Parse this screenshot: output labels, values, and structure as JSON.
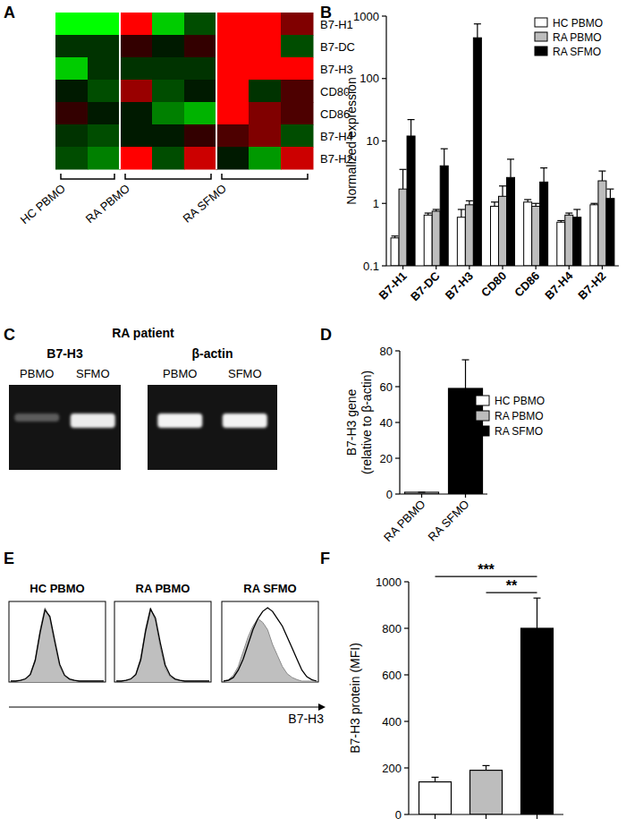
{
  "chart_data": [
    {
      "type": "heatmap",
      "panel_label": "A",
      "rows": [
        "B7-H1",
        "B7-DC",
        "B7-H3",
        "CD80",
        "CD86",
        "B7-H4",
        "B7-H2"
      ],
      "column_groups": [
        {
          "name": "HC PBMO",
          "columns": 2
        },
        {
          "name": "RA PBMO",
          "columns": 3
        },
        {
          "name": "RA SFMO",
          "columns": 3
        }
      ],
      "cells": [
        [
          -1,
          -1,
          1,
          -0.8,
          -0.3,
          1,
          1,
          0.5
        ],
        [
          -0.2,
          -0.2,
          0.2,
          -0.1,
          0.2,
          1,
          1,
          -0.3
        ],
        [
          -0.8,
          -0.2,
          -0.2,
          -0.2,
          -0.2,
          1,
          1,
          1
        ],
        [
          -0.1,
          -0.3,
          0.6,
          -0.3,
          -0.1,
          1,
          -0.2,
          0.3
        ],
        [
          0.2,
          -0.1,
          -0.1,
          -0.5,
          -0.7,
          1,
          0.5,
          0.3
        ],
        [
          -0.2,
          -0.3,
          -0.1,
          -0.1,
          0.2,
          0.3,
          0.5,
          -0.3
        ],
        [
          -0.3,
          -0.5,
          1,
          -0.3,
          0.8,
          -0.1,
          -0.6,
          0.8
        ]
      ],
      "color_range": [
        -1,
        1
      ]
    },
    {
      "type": "bar",
      "panel_label": "B",
      "categories": [
        "B7-H1",
        "B7-DC",
        "B7-H3",
        "CD80",
        "CD86",
        "B7-H4",
        "B7-H2"
      ],
      "series": [
        {
          "name": "HC PBMO",
          "color": "#ffffff",
          "values": [
            0.28,
            0.65,
            0.6,
            0.9,
            1.05,
            0.5,
            0.95
          ],
          "errors": [
            0.02,
            0.05,
            0.2,
            0.15,
            0.1,
            0.03,
            0.05
          ]
        },
        {
          "name": "RA PBMO",
          "color": "#bdbdbd",
          "values": [
            1.7,
            0.75,
            0.95,
            1.3,
            0.9,
            0.65,
            2.3
          ],
          "errors": [
            1.8,
            0.05,
            0.15,
            0.6,
            0.1,
            0.05,
            1.0
          ]
        },
        {
          "name": "RA SFMO",
          "color": "#000000",
          "values": [
            12,
            4,
            450,
            2.6,
            2.2,
            0.6,
            1.2
          ],
          "errors": [
            10,
            3.5,
            300,
            2.5,
            1.5,
            0.2,
            0.5
          ]
        }
      ],
      "ylim": [
        0.1,
        1000
      ],
      "yticks": [
        0.1,
        1,
        10,
        100,
        1000
      ],
      "log": "y",
      "y_label": "Normalized expression",
      "legend": "top-right"
    },
    {
      "type": "gel",
      "panel_label": "C",
      "title": "RA patient",
      "genes": [
        {
          "name": "B7-H3",
          "lanes": [
            "PBMO",
            "SFMO"
          ],
          "band_intensity": [
            0.3,
            0.92
          ]
        },
        {
          "name": "β-actin",
          "lanes": [
            "PBMO",
            "SFMO"
          ],
          "band_intensity": [
            0.95,
            0.95
          ]
        }
      ]
    },
    {
      "type": "bar",
      "panel_label": "D",
      "categories": [
        "RA PBMO",
        "RA SFMO"
      ],
      "values": [
        1,
        59
      ],
      "errors": [
        0,
        16
      ],
      "colors": [
        "#ffffff",
        "#000000"
      ],
      "ylim": [
        0,
        80
      ],
      "yticks": [
        0,
        20,
        40,
        60,
        80
      ],
      "y_label": [
        "B7-H3 gene",
        "(relative to β-actin)"
      ]
    },
    {
      "type": "histogram_overlay",
      "panel_label": "E",
      "x_label": "B7-H3",
      "panels": [
        {
          "title": "HC PBMO",
          "isotype": [
            0,
            0,
            0.01,
            0.03,
            0.1,
            0.3,
            0.7,
            1,
            0.85,
            0.5,
            0.2,
            0.07,
            0.02,
            0.01,
            0,
            0,
            0,
            0,
            0,
            0
          ],
          "stain": [
            0,
            0,
            0.01,
            0.03,
            0.09,
            0.28,
            0.66,
            0.97,
            0.88,
            0.55,
            0.23,
            0.08,
            0.03,
            0.01,
            0,
            0,
            0,
            0,
            0,
            0
          ]
        },
        {
          "title": "RA PBMO",
          "isotype": [
            0,
            0,
            0.01,
            0.03,
            0.1,
            0.32,
            0.72,
            1,
            0.82,
            0.46,
            0.18,
            0.06,
            0.02,
            0.01,
            0,
            0,
            0,
            0,
            0,
            0
          ],
          "stain": [
            0,
            0,
            0.01,
            0.03,
            0.09,
            0.29,
            0.68,
            0.98,
            0.86,
            0.52,
            0.22,
            0.08,
            0.03,
            0.01,
            0,
            0,
            0,
            0,
            0,
            0
          ]
        },
        {
          "title": "RA SFMO",
          "isotype": [
            0,
            0.02,
            0.08,
            0.2,
            0.4,
            0.6,
            0.75,
            0.85,
            0.8,
            0.7,
            0.5,
            0.35,
            0.2,
            0.1,
            0.05,
            0.02,
            0,
            0,
            0,
            0
          ],
          "stain": [
            0,
            0.01,
            0.05,
            0.15,
            0.3,
            0.5,
            0.7,
            0.85,
            0.95,
            1,
            0.95,
            0.85,
            0.75,
            0.6,
            0.45,
            0.3,
            0.15,
            0.06,
            0.02,
            0
          ]
        }
      ]
    },
    {
      "type": "bar",
      "panel_label": "F",
      "categories": [
        null
      ],
      "series": [
        {
          "name": "HC PBMO",
          "color": "#ffffff",
          "values": [
            140
          ],
          "errors": [
            20
          ]
        },
        {
          "name": "RA PBMO",
          "color": "#bdbdbd",
          "values": [
            190
          ],
          "errors": [
            20
          ]
        },
        {
          "name": "RA SFMO",
          "color": "#000000",
          "values": [
            800
          ],
          "errors": [
            130
          ]
        }
      ],
      "ylim": [
        0,
        1000
      ],
      "yticks": [
        0,
        200,
        400,
        600,
        800,
        1000
      ],
      "y_label": "B7-H3 protein (MFI)",
      "legend": "top",
      "annotations": [
        {
          "text": "***",
          "from": 0,
          "to": 2
        },
        {
          "text": "**",
          "from": 1,
          "to": 2
        }
      ]
    }
  ]
}
